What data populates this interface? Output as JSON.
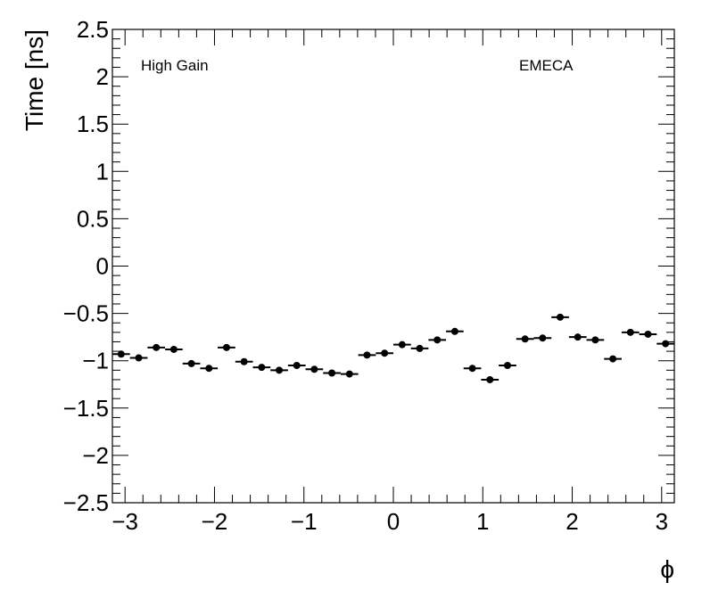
{
  "chart_data": {
    "type": "scatter",
    "xlabel": "ϕ",
    "ylabel": "Time [ns]",
    "xlim": [
      -3.1416,
      3.1416
    ],
    "ylim": [
      -2.5,
      2.5
    ],
    "x_ticks": [
      -3,
      -2,
      -1,
      0,
      1,
      2,
      3
    ],
    "x_tick_labels": [
      "−3",
      "−2",
      "−1",
      "0",
      "1",
      "2",
      "3"
    ],
    "y_ticks": [
      -2.5,
      -2,
      -1.5,
      -1,
      -0.5,
      0,
      0.5,
      1,
      1.5,
      2,
      2.5
    ],
    "y_tick_labels": [
      "−2.5",
      "−2",
      "−1.5",
      "−1",
      "−0.5",
      "0",
      "0.5",
      "1",
      "1.5",
      "2",
      "2.5"
    ],
    "annotations": [
      "High Gain",
      "EMECA"
    ],
    "grid": false,
    "series": [
      {
        "x": [
          -3.0434,
          -2.8471,
          -2.6507,
          -2.4544,
          -2.258,
          -2.0617,
          -1.8653,
          -1.669,
          -1.4726,
          -1.2763,
          -1.0799,
          -0.8836,
          -0.6872,
          -0.4909,
          -0.2945,
          -0.0982,
          0.0982,
          0.2945,
          0.4909,
          0.6872,
          0.8836,
          1.0799,
          1.2763,
          1.4726,
          1.669,
          1.8653,
          2.0617,
          2.258,
          2.4544,
          2.6507,
          2.8471,
          3.0434
        ],
        "y": [
          -0.93,
          -0.97,
          -0.86,
          -0.88,
          -1.03,
          -1.08,
          -0.86,
          -1.01,
          -1.07,
          -1.1,
          -1.05,
          -1.09,
          -1.13,
          -1.14,
          -0.94,
          -0.92,
          -0.83,
          -0.87,
          -0.78,
          -0.69,
          -1.08,
          -1.2,
          -1.05,
          -0.77,
          -0.76,
          -0.54,
          -0.75,
          -0.78,
          -0.98,
          -0.7,
          -0.72,
          -0.82
        ],
        "xerr": 0.0982,
        "color": "#000000"
      }
    ]
  }
}
